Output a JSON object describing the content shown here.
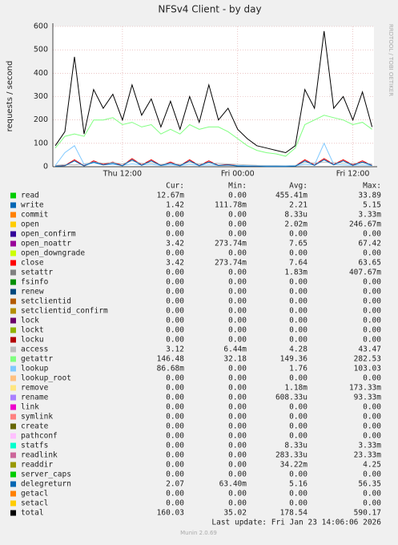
{
  "chart_data": {
    "type": "line",
    "title": "NFSv4 Client - by day",
    "ylabel": "requests / second",
    "watermark": "RRDTOOL / TOBI OETIKER",
    "x": [
      5,
      6,
      7,
      8,
      9,
      10,
      11,
      12,
      13,
      14,
      15,
      16,
      17,
      18,
      19,
      20,
      21,
      22,
      23,
      24,
      25,
      26,
      27,
      28,
      29,
      30,
      31,
      32,
      33,
      34,
      35,
      36,
      37,
      38
    ],
    "xlim": [
      4.75,
      38.2
    ],
    "xticks": [
      {
        "value": 12,
        "label": "Thu 12:00"
      },
      {
        "value": 24,
        "label": "Fri 00:00"
      },
      {
        "value": 36,
        "label": "Fri 12:00"
      }
    ],
    "ylim": [
      0,
      600
    ],
    "yticks": [
      0,
      100,
      200,
      300,
      400,
      500,
      600
    ],
    "grid": true,
    "stat_headers": [
      "Cur:",
      "Min:",
      "Avg:",
      "Max:"
    ],
    "series": [
      {
        "name": "read",
        "color": "#00cc00",
        "cur": "12.67m",
        "min": "0.00",
        "avg": "455.41m",
        "max": "33.89"
      },
      {
        "name": "write",
        "color": "#0066b3",
        "cur": "1.42",
        "min": "111.78m",
        "avg": "2.21",
        "max": "5.15"
      },
      {
        "name": "commit",
        "color": "#ff8000",
        "cur": "0.00",
        "min": "0.00",
        "avg": "8.33u",
        "max": "3.33m"
      },
      {
        "name": "open",
        "color": "#ffcc00",
        "cur": "0.00",
        "min": "0.00",
        "avg": "2.02m",
        "max": "246.67m"
      },
      {
        "name": "open_confirm",
        "color": "#330099",
        "cur": "0.00",
        "min": "0.00",
        "avg": "0.00",
        "max": "0.00"
      },
      {
        "name": "open_noattr",
        "color": "#990099",
        "cur": "3.42",
        "min": "273.74m",
        "avg": "7.65",
        "max": "67.42"
      },
      {
        "name": "open_downgrade",
        "color": "#ccff00",
        "cur": "0.00",
        "min": "0.00",
        "avg": "0.00",
        "max": "0.00"
      },
      {
        "name": "close",
        "color": "#ff0000",
        "cur": "3.42",
        "min": "273.74m",
        "avg": "7.64",
        "max": "63.65",
        "values": [
          3,
          5,
          30,
          4,
          25,
          10,
          20,
          5,
          35,
          8,
          30,
          6,
          20,
          5,
          30,
          5,
          25,
          6,
          10,
          4,
          3,
          2,
          2,
          2,
          2,
          3,
          30,
          8,
          35,
          10,
          30,
          8,
          25,
          6
        ]
      },
      {
        "name": "setattr",
        "color": "#808080",
        "cur": "0.00",
        "min": "0.00",
        "avg": "1.83m",
        "max": "407.67m"
      },
      {
        "name": "fsinfo",
        "color": "#008f00",
        "cur": "0.00",
        "min": "0.00",
        "avg": "0.00",
        "max": "0.00"
      },
      {
        "name": "renew",
        "color": "#00487d",
        "cur": "0.00",
        "min": "0.00",
        "avg": "0.00",
        "max": "0.00"
      },
      {
        "name": "setclientid",
        "color": "#b35a00",
        "cur": "0.00",
        "min": "0.00",
        "avg": "0.00",
        "max": "0.00"
      },
      {
        "name": "setclientid_confirm",
        "color": "#b38f00",
        "cur": "0.00",
        "min": "0.00",
        "avg": "0.00",
        "max": "0.00"
      },
      {
        "name": "lock",
        "color": "#6b006b",
        "cur": "0.00",
        "min": "0.00",
        "avg": "0.00",
        "max": "0.00"
      },
      {
        "name": "lockt",
        "color": "#8fb300",
        "cur": "0.00",
        "min": "0.00",
        "avg": "0.00",
        "max": "0.00"
      },
      {
        "name": "locku",
        "color": "#b30000",
        "cur": "0.00",
        "min": "0.00",
        "avg": "0.00",
        "max": "0.00"
      },
      {
        "name": "access",
        "color": "#bebebe",
        "cur": "3.12",
        "min": "6.44m",
        "avg": "4.28",
        "max": "43.47",
        "values": [
          5,
          10,
          8,
          12,
          20,
          15,
          18,
          12,
          25,
          14,
          16,
          10,
          15,
          10,
          18,
          12,
          16,
          14,
          12,
          10,
          8,
          6,
          5,
          5,
          4,
          6,
          18,
          16,
          20,
          18,
          15,
          14,
          16,
          12
        ]
      },
      {
        "name": "getattr",
        "color": "#80ff80",
        "cur": "146.48",
        "min": "32.18",
        "avg": "149.36",
        "max": "282.53",
        "values": [
          80,
          130,
          140,
          130,
          200,
          200,
          210,
          180,
          190,
          170,
          180,
          140,
          160,
          140,
          180,
          160,
          170,
          170,
          150,
          120,
          90,
          70,
          60,
          55,
          45,
          80,
          180,
          200,
          220,
          210,
          200,
          180,
          190,
          160
        ]
      },
      {
        "name": "lookup",
        "color": "#80c9ff",
        "cur": "86.68m",
        "min": "0.00",
        "avg": "1.76",
        "max": "103.03",
        "values": [
          5,
          60,
          90,
          10,
          15,
          8,
          10,
          6,
          12,
          8,
          10,
          5,
          8,
          5,
          10,
          6,
          8,
          6,
          6,
          5,
          4,
          3,
          3,
          3,
          3,
          4,
          10,
          8,
          100,
          10,
          8,
          6,
          8,
          5
        ]
      },
      {
        "name": "lookup_root",
        "color": "#ffc080",
        "cur": "0.00",
        "min": "0.00",
        "avg": "0.00",
        "max": "0.00"
      },
      {
        "name": "remove",
        "color": "#ffe680",
        "cur": "0.00",
        "min": "0.00",
        "avg": "1.18m",
        "max": "173.33m"
      },
      {
        "name": "rename",
        "color": "#aa80ff",
        "cur": "0.00",
        "min": "0.00",
        "avg": "608.33u",
        "max": "93.33m"
      },
      {
        "name": "link",
        "color": "#ee00cc",
        "cur": "0.00",
        "min": "0.00",
        "avg": "0.00",
        "max": "0.00"
      },
      {
        "name": "symlink",
        "color": "#ff8080",
        "cur": "0.00",
        "min": "0.00",
        "avg": "0.00",
        "max": "0.00"
      },
      {
        "name": "create",
        "color": "#666600",
        "cur": "0.00",
        "min": "0.00",
        "avg": "0.00",
        "max": "0.00"
      },
      {
        "name": "pathconf",
        "color": "#ffbfff",
        "cur": "0.00",
        "min": "0.00",
        "avg": "0.00",
        "max": "0.00"
      },
      {
        "name": "statfs",
        "color": "#00ffcc",
        "cur": "0.00",
        "min": "0.00",
        "avg": "8.33u",
        "max": "3.33m"
      },
      {
        "name": "readlink",
        "color": "#cc6699",
        "cur": "0.00",
        "min": "0.00",
        "avg": "283.33u",
        "max": "23.33m"
      },
      {
        "name": "readdir",
        "color": "#999900",
        "cur": "0.00",
        "min": "0.00",
        "avg": "34.22m",
        "max": "4.25"
      },
      {
        "name": "server_caps",
        "color": "#00cc00",
        "cur": "0.00",
        "min": "0.00",
        "avg": "0.00",
        "max": "0.00"
      },
      {
        "name": "delegreturn",
        "color": "#0066b3",
        "cur": "2.07",
        "min": "63.40m",
        "avg": "5.16",
        "max": "56.35",
        "values": [
          2,
          4,
          25,
          3,
          20,
          8,
          15,
          4,
          30,
          6,
          25,
          5,
          15,
          4,
          25,
          4,
          20,
          5,
          8,
          3,
          2,
          2,
          1,
          1,
          1,
          2,
          25,
          6,
          30,
          8,
          25,
          6,
          20,
          5
        ]
      },
      {
        "name": "getacl",
        "color": "#ff8000",
        "cur": "0.00",
        "min": "0.00",
        "avg": "0.00",
        "max": "0.00"
      },
      {
        "name": "setacl",
        "color": "#ffcc00",
        "cur": "0.00",
        "min": "0.00",
        "avg": "0.00",
        "max": "0.00"
      },
      {
        "name": "total",
        "color": "#000000",
        "cur": "160.03",
        "min": "35.02",
        "avg": "178.54",
        "max": "590.17",
        "values": [
          90,
          150,
          470,
          140,
          330,
          250,
          310,
          200,
          350,
          220,
          290,
          170,
          280,
          160,
          300,
          190,
          350,
          200,
          250,
          160,
          120,
          90,
          80,
          70,
          60,
          90,
          330,
          250,
          580,
          250,
          300,
          200,
          320,
          170
        ]
      }
    ],
    "footer": "Last update: Fri Jan 23 14:06:06 2026",
    "version": "Munin 2.0.69"
  }
}
